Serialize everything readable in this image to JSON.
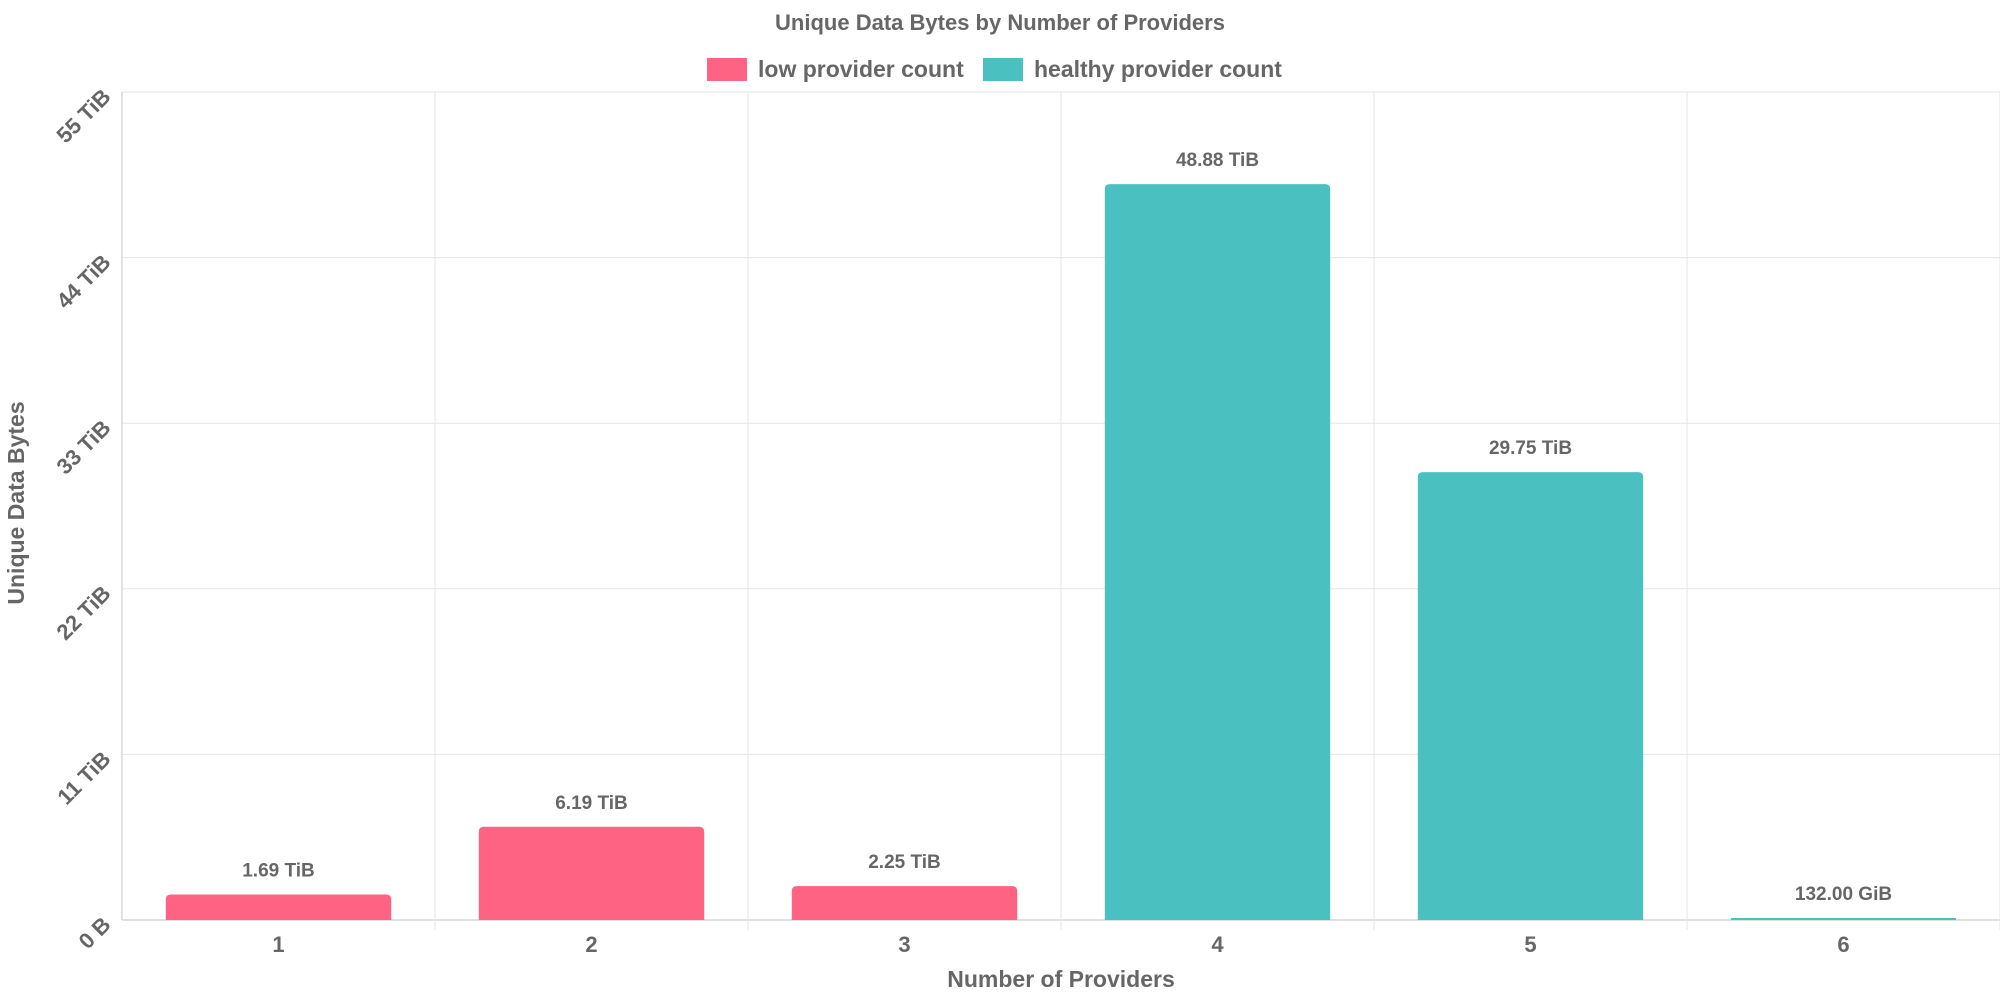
{
  "chart_data": {
    "type": "bar",
    "title": "Unique Data Bytes by Number of Providers",
    "xlabel": "Number of Providers",
    "ylabel": "Unique Data Bytes",
    "categories": [
      "1",
      "2",
      "3",
      "4",
      "5",
      "6"
    ],
    "values_tib": [
      1.69,
      6.19,
      2.25,
      48.88,
      29.75,
      0.1289
    ],
    "value_labels": [
      "1.69 TiB",
      "6.19 TiB",
      "2.25 TiB",
      "48.88 TiB",
      "29.75 TiB",
      "132.00 GiB"
    ],
    "series_of_bar": [
      "low provider count",
      "low provider count",
      "low provider count",
      "healthy provider count",
      "healthy provider count",
      "healthy provider count"
    ],
    "ylim": [
      0,
      55
    ],
    "y_ticks": [
      0,
      11,
      22,
      33,
      44,
      55
    ],
    "y_tick_labels": [
      "0 B",
      "11 TiB",
      "22 TiB",
      "33 TiB",
      "44 TiB",
      "55 TiB"
    ],
    "legend": [
      {
        "name": "low provider count",
        "color": "#ff6384"
      },
      {
        "name": "healthy provider count",
        "color": "#4bc0c0"
      }
    ],
    "legend_position": "top-center",
    "grid": true
  }
}
